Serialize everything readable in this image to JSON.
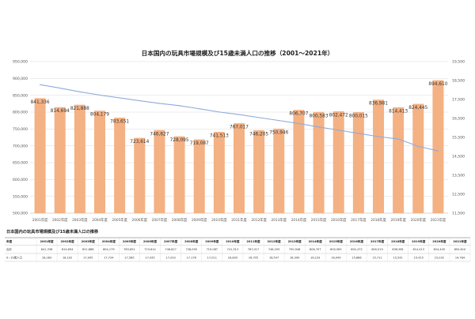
{
  "chart_data": {
    "type": "bar",
    "title": "日本国内の玩具市場規模及び15歳未満人口の推移（2001～2021年）",
    "categories": [
      "2001年度",
      "2002年度",
      "2003年度",
      "2004年度",
      "2005年度",
      "2006年度",
      "2007年度",
      "2008年度",
      "2009年度",
      "2010年度",
      "2011年度",
      "2012年度",
      "2013年度",
      "2014年度",
      "2015年度",
      "2016年度",
      "2017年度",
      "2018年度",
      "2019年度",
      "2020年度",
      "2021年度"
    ],
    "series": [
      {
        "type": "bar",
        "axis": "left",
        "color": "#f4b183",
        "values": [
          841336,
          814694,
          821888,
          804179,
          783651,
          723614,
          746627,
          728095,
          719087,
          741513,
          767017,
          746205,
          750946,
          806707,
          800583,
          802472,
          800015,
          836981,
          814413,
          824445,
          894610
        ]
      },
      {
        "type": "line",
        "axis": "right",
        "color": "#8faadc",
        "values": [
          18283,
          18102,
          17905,
          17734,
          17585,
          17435,
          17293,
          17176,
          17011,
          16839,
          16705,
          16547,
          16390,
          16233,
          16049,
          15886,
          15711,
          15541,
          15415,
          15032,
          14784
        ]
      }
    ],
    "ylim": [
      500000,
      950000
    ],
    "y_ticks": [
      500000,
      550000,
      600000,
      650000,
      700000,
      750000,
      800000,
      850000,
      900000,
      950000
    ],
    "y2lim": [
      11500,
      19500
    ],
    "y2_ticks": [
      11500,
      12500,
      13500,
      14500,
      15500,
      16500,
      17500,
      18500,
      19500
    ],
    "grid": true,
    "xlabel": "",
    "ylabel": ""
  },
  "table": {
    "title": "日本国内の玩具市場規模及び15歳未満人口の推移",
    "header_label": "年度",
    "rows": [
      {
        "label": "合計",
        "values": [
          "841,336",
          "814,694",
          "821,888",
          "804,179",
          "783,651",
          "723,614",
          "746,627",
          "728,095",
          "719,087",
          "741,513",
          "767,017",
          "746,205",
          "750,946",
          "806,707",
          "800,583",
          "802,472",
          "800,015",
          "836,981",
          "814,413",
          "824,445",
          "894,610"
        ]
      },
      {
        "label": "0~15歳人口",
        "values": [
          "18,283",
          "18,102",
          "17,905",
          "17,734",
          "17,585",
          "17,435",
          "17,293",
          "17,176",
          "17,011",
          "16,839",
          "16,705",
          "16,547",
          "16,390",
          "16,233",
          "16,049",
          "15,886",
          "15,711",
          "15,541",
          "15,415",
          "15,032",
          "14,784"
        ]
      }
    ]
  }
}
